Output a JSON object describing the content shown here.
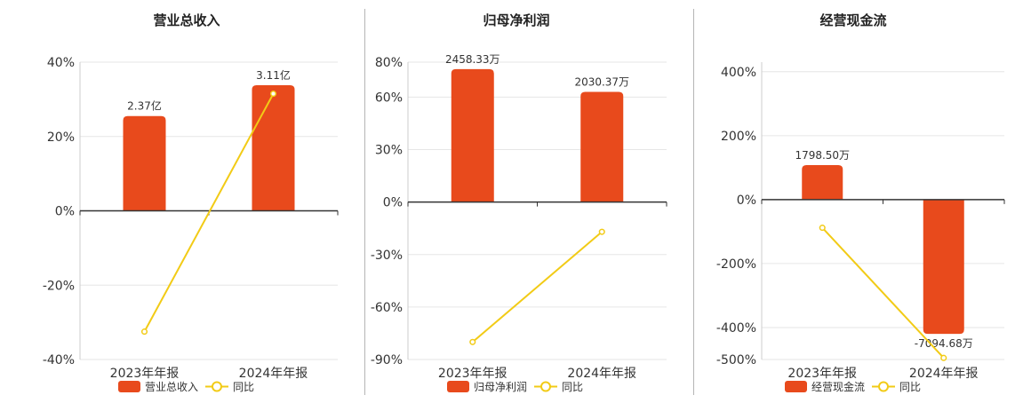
{
  "colors": {
    "bar": "#E84A1C",
    "line": "#F2CB16",
    "axis": "#333333",
    "grid": "#e6e6e6",
    "text": "#333333"
  },
  "chart_data": [
    {
      "type": "bar",
      "title": "营业总收入",
      "categories": [
        "2023年年报",
        "2024年年报"
      ],
      "series": [
        {
          "name": "营业总收入",
          "type": "bar",
          "values": [
            25.5,
            33.8
          ],
          "data_labels": [
            "2.37亿",
            "3.11亿"
          ]
        },
        {
          "name": "同比",
          "type": "line",
          "values": [
            -32.5,
            31.5
          ]
        }
      ],
      "ylim": [
        -40,
        40
      ],
      "yticks": [
        40,
        20,
        0,
        -20,
        -40
      ],
      "ytick_labels": [
        "40%",
        "20%",
        "0%",
        "-20%",
        "-40%"
      ],
      "grid": true,
      "legend": "bottom"
    },
    {
      "type": "bar",
      "title": "归母净利润",
      "categories": [
        "2023年年报",
        "2024年年报"
      ],
      "series": [
        {
          "name": "归母净利润",
          "type": "bar",
          "values": [
            76,
            63
          ],
          "data_labels": [
            "2458.33万",
            "2030.37万"
          ]
        },
        {
          "name": "同比",
          "type": "line",
          "values": [
            -80,
            -17
          ]
        }
      ],
      "ylim": [
        -90,
        80
      ],
      "yticks": [
        80,
        60,
        30,
        0,
        -30,
        -60,
        -90
      ],
      "ytick_labels": [
        "80%",
        "60%",
        "30%",
        "0%",
        "-30%",
        "-60%",
        "-90%"
      ],
      "grid": true,
      "legend": "bottom"
    },
    {
      "type": "bar",
      "title": "经营现金流",
      "categories": [
        "2023年年报",
        "2024年年报"
      ],
      "series": [
        {
          "name": "经营现金流",
          "type": "bar",
          "values": [
            108,
            -420
          ],
          "data_labels": [
            "1798.50万",
            "-7094.68万"
          ]
        },
        {
          "name": "同比",
          "type": "line",
          "values": [
            -88,
            -495
          ]
        }
      ],
      "ylim": [
        -500,
        430
      ],
      "yticks": [
        400,
        200,
        0,
        -200,
        -400,
        -500
      ],
      "ytick_labels": [
        "400%",
        "200%",
        "0%",
        "-200%",
        "-400%",
        "-500%"
      ],
      "grid": true,
      "legend": "bottom"
    }
  ]
}
